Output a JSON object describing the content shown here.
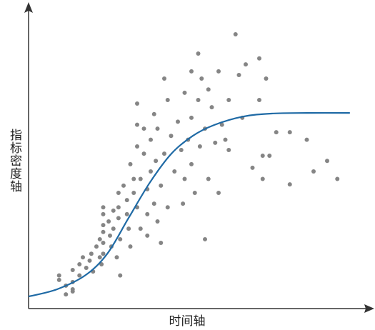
{
  "chart_data": {
    "type": "scatter",
    "x_label": "时间轴",
    "y_label": "指标密度轴",
    "xlim": [
      0,
      100
    ],
    "ylim": [
      0,
      100
    ],
    "series": [
      {
        "kind": "scatter",
        "color": "#858585",
        "x": [
          9,
          9,
          11,
          11,
          13,
          13,
          13,
          13,
          15,
          15,
          16,
          17,
          18,
          18.5,
          19,
          20,
          21,
          21,
          21.5,
          22,
          22,
          22,
          22,
          22,
          22,
          23.6,
          24,
          24.4,
          25,
          25,
          26,
          26.5,
          26.5,
          26.5,
          27,
          27,
          28,
          29,
          29,
          29.5,
          30,
          30,
          31,
          31,
          32,
          32,
          32,
          32,
          33,
          33,
          34,
          34,
          35,
          35,
          35,
          36,
          36,
          37,
          37,
          37.5,
          38,
          38,
          39,
          39,
          40,
          40,
          41,
          41,
          42,
          43,
          44,
          45,
          45.5,
          46,
          46,
          47,
          48,
          48,
          48,
          49,
          50,
          50,
          50.5,
          51,
          52,
          52,
          53,
          53,
          54,
          55,
          56,
          56,
          57,
          58,
          59,
          59,
          61,
          62,
          63,
          64,
          66,
          68,
          68,
          69,
          69,
          70,
          71,
          73,
          77,
          77,
          82,
          84,
          88,
          91
        ],
        "values": [
          11,
          9.5,
          7.6,
          4.7,
          8.8,
          6.4,
          12.8,
          5.7,
          14.7,
          11,
          17,
          13.5,
          15.9,
          18.2,
          12.3,
          20.6,
          17,
          23,
          14.7,
          33.6,
          31.3,
          27.7,
          25.4,
          21.8,
          18.2,
          28.9,
          24.2,
          20.6,
          32.5,
          26.5,
          17,
          38.4,
          33.6,
          30,
          23,
          11,
          40.8,
          36,
          31.3,
          26.5,
          20.6,
          47.9,
          43,
          38.4,
          68,
          61,
          53.8,
          33.6,
          26.5,
          43,
          59.7,
          51.4,
          39.6,
          31.3,
          24.2,
          56,
          45.5,
          34.8,
          64.5,
          49,
          28.9,
          59.7,
          40.8,
          21.8,
          76.3,
          51.4,
          33.6,
          69.2,
          57.3,
          45.5,
          62,
          52.6,
          34.8,
          43,
          71.6,
          56,
          78.7,
          63.3,
          47.9,
          38.4,
          84.6,
          69.2,
          53.8,
          76.3,
          59.7,
          23,
          72.7,
          43,
          66.8,
          55,
          78.7,
          38.4,
          61,
          56,
          69.2,
          52.6,
          91,
          77.5,
          63.3,
          81,
          46.7,
          83,
          69.2,
          50.7,
          43,
          76.3,
          50.7,
          58.5,
          58.5,
          41.2,
          56,
          45.5,
          49,
          43
        ]
      },
      {
        "kind": "line",
        "color": "#1f6aa5",
        "x": [
          0,
          8.4,
          16.8,
          23.2,
          29.5,
          35.8,
          42.1,
          48.4,
          54.7,
          63.2,
          71.6,
          82.1,
          94.7
        ],
        "values": [
          4,
          6.4,
          11.1,
          18.2,
          30.1,
          41.9,
          51.4,
          57.3,
          60.9,
          63.7,
          64.7,
          64.9,
          64.9
        ]
      }
    ]
  }
}
